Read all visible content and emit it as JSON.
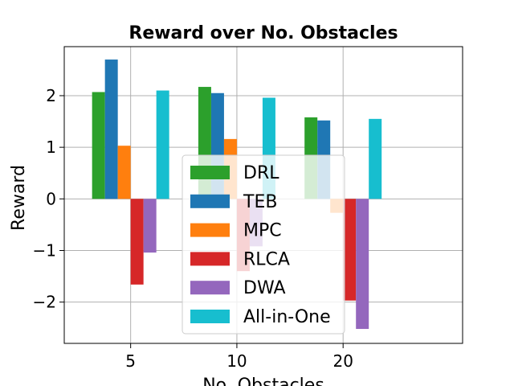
{
  "chart_data": {
    "type": "bar",
    "title": "Reward over No. Obstacles",
    "xlabel": "No. Obstacles",
    "ylabel": "Reward",
    "categories": [
      "5",
      "10",
      "20"
    ],
    "ylim": [
      -2.8,
      2.95
    ],
    "yticks": [
      -2,
      -1,
      0,
      1,
      2
    ],
    "ytick_labels": [
      "−2",
      "−1",
      "0",
      "1",
      "2"
    ],
    "grid": true,
    "legend_position": "lower center",
    "series": [
      {
        "name": "DRL",
        "color": "#2ca02c",
        "values": [
          2.07,
          2.17,
          1.58
        ]
      },
      {
        "name": "TEB",
        "color": "#1f77b4",
        "values": [
          2.7,
          2.05,
          1.52
        ]
      },
      {
        "name": "MPC",
        "color": "#ff7f0e",
        "values": [
          1.03,
          1.16,
          -0.27
        ]
      },
      {
        "name": "RLCA",
        "color": "#d62728",
        "values": [
          -1.66,
          -1.4,
          -1.97
        ]
      },
      {
        "name": "DWA",
        "color": "#9467bd",
        "values": [
          -1.04,
          -0.92,
          -2.52
        ]
      },
      {
        "name": "All-in-One",
        "color": "#17becf",
        "values": [
          2.1,
          1.96,
          1.55
        ]
      }
    ]
  }
}
